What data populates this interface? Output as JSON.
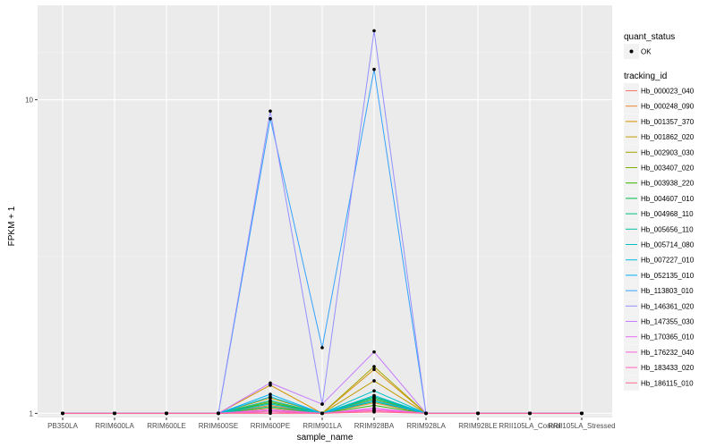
{
  "chart_data": {
    "type": "line",
    "xlabel": "sample_name",
    "ylabel": "FPKM + 1",
    "y_scale": "log",
    "ylim": [
      0.97,
      20
    ],
    "y_ticks": [
      1,
      10
    ],
    "y_tick_labels": [
      "1",
      "10"
    ],
    "grid": true,
    "categories": [
      "PB350LA",
      "RRIM600LA",
      "RRIM600LE",
      "RRIM600SE",
      "RRIM600PE",
      "RRIM901LA",
      "RRIM928BA",
      "RRIM928LA",
      "RRIM928LE",
      "RRII105LA_Control",
      "RRII105LA_Stressed"
    ],
    "legend_shape": {
      "title": "quant_status",
      "entries": [
        "OK"
      ]
    },
    "legend_color_title": "tracking_id",
    "series": [
      {
        "name": "Hb_000023_040",
        "color": "#F8766D",
        "values": [
          1,
          1,
          1,
          1,
          1.01,
          1,
          1.02,
          1,
          1,
          1,
          1
        ]
      },
      {
        "name": "Hb_000248_090",
        "color": "#EA8331",
        "values": [
          1,
          1,
          1,
          1,
          1.06,
          1,
          1.08,
          1,
          1,
          1,
          1
        ]
      },
      {
        "name": "Hb_001357_370",
        "color": "#D89000",
        "values": [
          1,
          1,
          1,
          1,
          1.23,
          1,
          1.38,
          1,
          1,
          1,
          1
        ]
      },
      {
        "name": "Hb_001862_020",
        "color": "#C09B00",
        "values": [
          1,
          1,
          1,
          1,
          1.12,
          1,
          1.27,
          1,
          1,
          1,
          1
        ]
      },
      {
        "name": "Hb_002903_030",
        "color": "#A3A500",
        "values": [
          1,
          1,
          1,
          1,
          1.04,
          1,
          1.41,
          1,
          1,
          1,
          1
        ]
      },
      {
        "name": "Hb_003407_020",
        "color": "#7CAE00",
        "values": [
          1,
          1,
          1,
          1,
          1.09,
          1,
          1.11,
          1,
          1,
          1,
          1
        ]
      },
      {
        "name": "Hb_003938_220",
        "color": "#39B600",
        "values": [
          1,
          1,
          1,
          1,
          1.02,
          1,
          1.06,
          1,
          1,
          1,
          1
        ]
      },
      {
        "name": "Hb_004607_010",
        "color": "#00BB4E",
        "values": [
          1,
          1,
          1,
          1,
          1.08,
          1,
          1.13,
          1,
          1,
          1,
          1
        ]
      },
      {
        "name": "Hb_004968_110",
        "color": "#00BF7D",
        "values": [
          1,
          1,
          1,
          1,
          1.05,
          1,
          1.09,
          1,
          1,
          1,
          1
        ]
      },
      {
        "name": "Hb_005656_110",
        "color": "#00C1A3",
        "values": [
          1,
          1,
          1,
          1,
          1.1,
          1,
          1.12,
          1,
          1,
          1,
          1
        ]
      },
      {
        "name": "Hb_005714_080",
        "color": "#00BFC4",
        "values": [
          1,
          1,
          1,
          1,
          1.07,
          1,
          1.18,
          1,
          1,
          1,
          1
        ]
      },
      {
        "name": "Hb_007227_010",
        "color": "#00BAE0",
        "values": [
          1,
          1,
          1,
          1,
          1.13,
          1,
          1.14,
          1,
          1,
          1,
          1
        ]
      },
      {
        "name": "Hb_052135_010",
        "color": "#00B0F6",
        "values": [
          1,
          1,
          1,
          1,
          1.15,
          1,
          1.1,
          1,
          1,
          1,
          1
        ]
      },
      {
        "name": "Hb_113803_010",
        "color": "#35A2FF",
        "values": [
          1,
          1,
          1,
          1,
          8.7,
          1.62,
          12.5,
          1,
          1,
          1,
          1
        ]
      },
      {
        "name": "Hb_146361_020",
        "color": "#9590FF",
        "values": [
          1,
          1,
          1,
          1,
          9.2,
          1.07,
          16.6,
          1,
          1,
          1,
          1
        ]
      },
      {
        "name": "Hb_147355_030",
        "color": "#C77CFF",
        "values": [
          1,
          1,
          1,
          1,
          1.25,
          1.07,
          1.57,
          1,
          1,
          1,
          1
        ]
      },
      {
        "name": "Hb_170365_010",
        "color": "#E76BF3",
        "values": [
          1,
          1,
          1,
          1,
          1.03,
          1,
          1.04,
          1,
          1,
          1,
          1
        ]
      },
      {
        "name": "Hb_176232_040",
        "color": "#FA62DB",
        "values": [
          1,
          1,
          1,
          1,
          1.02,
          1,
          1.03,
          1,
          1,
          1,
          1
        ]
      },
      {
        "name": "Hb_183433_020",
        "color": "#FF62BC",
        "values": [
          1,
          1,
          1,
          1,
          1.01,
          1,
          1.02,
          1,
          1,
          1,
          1
        ]
      },
      {
        "name": "Hb_186115_010",
        "color": "#FF6C91",
        "values": [
          1,
          1,
          1,
          1,
          1,
          1,
          1.01,
          1,
          1,
          1,
          1
        ]
      }
    ]
  }
}
